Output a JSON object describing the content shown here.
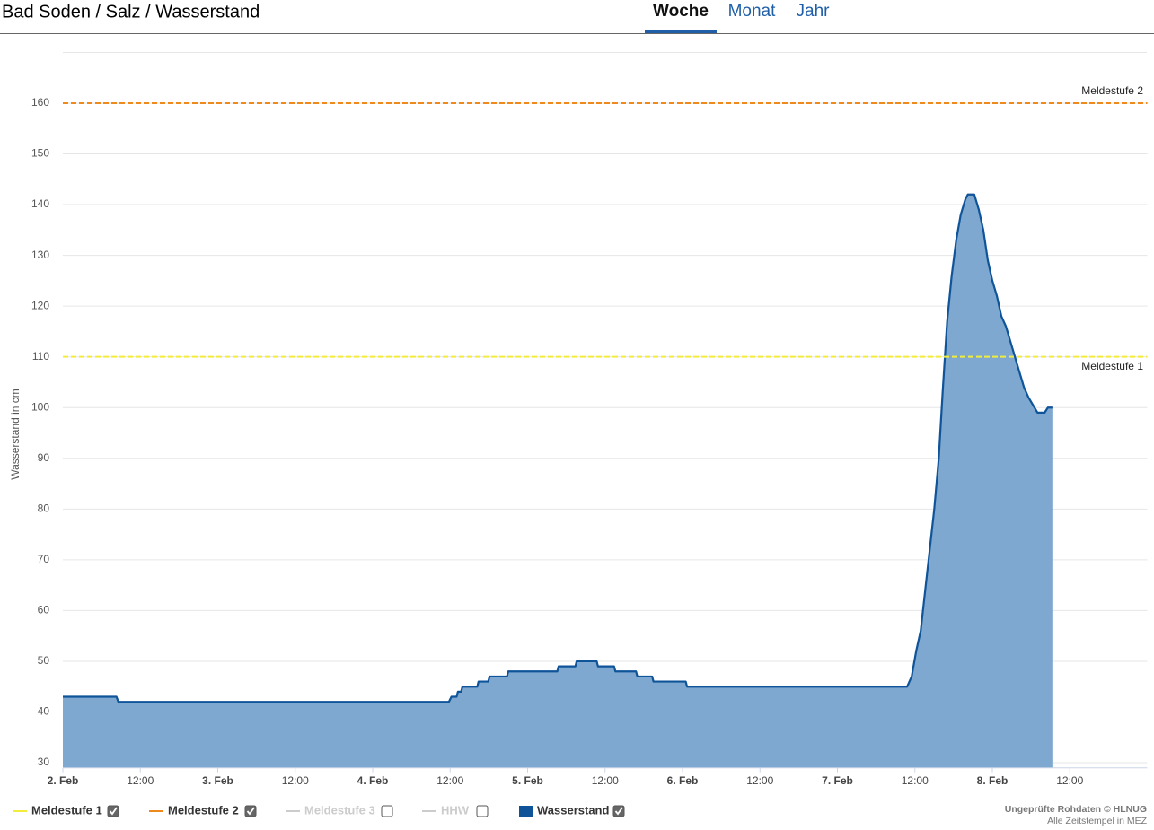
{
  "header": {
    "title": "Bad Soden / Salz / Wasserstand",
    "tabs": [
      "Woche",
      "Monat",
      "Jahr"
    ],
    "active_tab": 0
  },
  "chart_data": {
    "type": "area",
    "ylabel": "Wasserstand in cm",
    "xlim": [
      0,
      168
    ],
    "ylim": [
      29,
      170
    ],
    "xticks": [
      {
        "value": 0,
        "label": "2. Feb"
      },
      {
        "value": 12,
        "label": "12:00"
      },
      {
        "value": 24,
        "label": "3. Feb"
      },
      {
        "value": 36,
        "label": "12:00"
      },
      {
        "value": 48,
        "label": "4. Feb"
      },
      {
        "value": 60,
        "label": "12:00"
      },
      {
        "value": 72,
        "label": "5. Feb"
      },
      {
        "value": 84,
        "label": "12:00"
      },
      {
        "value": 96,
        "label": "6. Feb"
      },
      {
        "value": 108,
        "label": "12:00"
      },
      {
        "value": 120,
        "label": "7. Feb"
      },
      {
        "value": 132,
        "label": "12:00"
      },
      {
        "value": 144,
        "label": "8. Feb"
      },
      {
        "value": 156,
        "label": "12:00"
      }
    ],
    "yticks": [
      30,
      40,
      50,
      60,
      70,
      80,
      90,
      100,
      110,
      120,
      130,
      140,
      150,
      160
    ],
    "grid": true,
    "series": [
      {
        "name": "Meldestufe 1",
        "color": "#f2ec3c",
        "value": 110,
        "checked": true,
        "disabled": false
      },
      {
        "name": "Meldestufe 2",
        "color": "#ee8a1c",
        "value": 160,
        "checked": true,
        "disabled": false
      },
      {
        "name": "Meldestufe 3",
        "color": "#cccccc",
        "checked": false,
        "disabled": true
      },
      {
        "name": "HHW",
        "color": "#cccccc",
        "checked": false,
        "disabled": true
      },
      {
        "name": "Wasserstand",
        "color": "#0f5499",
        "fill": "#7ea8d0",
        "checked": true,
        "disabled": false,
        "x": [
          0,
          8.3,
          8.6,
          59.8,
          60.2,
          61.0,
          61.2,
          61.7,
          61.9,
          64.2,
          64.4,
          65.9,
          66.1,
          68.8,
          69.0,
          76.6,
          76.8,
          79.4,
          79.6,
          82.7,
          82.9,
          85.4,
          85.6,
          88.8,
          89.0,
          91.3,
          91.5,
          96.5,
          96.7,
          130.8,
          131.5,
          132.2,
          132.9,
          133.6,
          134.3,
          135.0,
          135.7,
          136.3,
          137.0,
          137.7,
          138.4,
          139.1,
          139.8,
          140.2,
          141.2,
          141.9,
          142.6,
          143.3,
          144.0,
          144.7,
          145.4,
          146.1,
          146.8,
          147.5,
          148.2,
          148.9,
          149.6,
          150.3,
          151.0,
          152.1,
          152.6,
          153.3
        ],
        "values": [
          43,
          43,
          42,
          42,
          43,
          43,
          44,
          44,
          45,
          45,
          46,
          46,
          47,
          47,
          48,
          48,
          49,
          49,
          50,
          50,
          49,
          49,
          48,
          48,
          47,
          47,
          46,
          46,
          45,
          45,
          47,
          52,
          56,
          64,
          72,
          80,
          90,
          103,
          117,
          126,
          133,
          138,
          141,
          142,
          142,
          139,
          135,
          129,
          125,
          122,
          118,
          116,
          113,
          110,
          107,
          104,
          102,
          100.5,
          99,
          99,
          100,
          100
        ]
      }
    ]
  },
  "credits": [
    "Ungeprüfte Rohdaten © HLNUG",
    "Alle Zeitstempel in MEZ"
  ]
}
